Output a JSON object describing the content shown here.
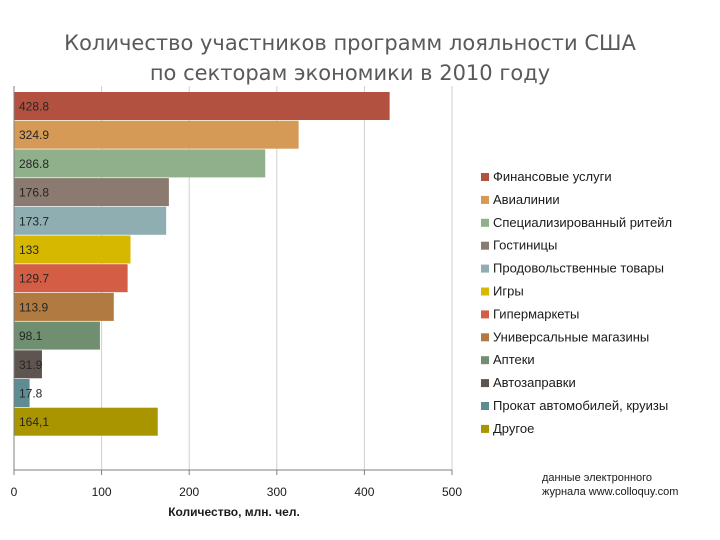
{
  "chart_data": {
    "type": "bar",
    "orientation": "horizontal",
    "title_lines": [
      "Количество участников программ лояльности США",
      "по секторам экономики в 2010 году"
    ],
    "xlabel": "Количество, млн. чел.",
    "xlim": [
      0,
      500
    ],
    "xticks": [
      "0",
      "100",
      "200",
      "300",
      "400",
      "500"
    ],
    "grid": true,
    "legend_position": "right",
    "source_lines": [
      "данные электронного",
      "журнала www.colloquy.com"
    ],
    "bars": [
      {
        "legend": "Финансовые услуги",
        "value": 428.8,
        "label": "428.8",
        "color": "#b2513f"
      },
      {
        "legend": "Авиалинии",
        "value": 324.9,
        "label": "324.9",
        "color": "#d59a55"
      },
      {
        "legend": "Специализированный ритейл",
        "value": 286.8,
        "label": "286.8",
        "color": "#8fb08a"
      },
      {
        "legend": "Гостиницы",
        "value": 176.8,
        "label": "176.8",
        "color": "#8a7a70"
      },
      {
        "legend": "Продовольственные товары",
        "value": 173.7,
        "label": "173.7",
        "color": "#8eaeb2"
      },
      {
        "legend": "Игры",
        "value": 133,
        "label": "133",
        "color": "#d6b800"
      },
      {
        "legend": "Гипермаркеты",
        "value": 129.7,
        "label": "129.7",
        "color": "#d45e45"
      },
      {
        "legend": "Универсальные магазины",
        "value": 113.9,
        "label": "113.9",
        "color": "#b07a40"
      },
      {
        "legend": "Аптеки",
        "value": 98.1,
        "label": "98.1",
        "color": "#708f70"
      },
      {
        "legend": "Автозаправки",
        "value": 31.9,
        "label": "31.9",
        "color": "#5e5550"
      },
      {
        "legend": "Прокат автомобилей, круизы",
        "value": 17.8,
        "label": "17.8",
        "color": "#5f8c92"
      },
      {
        "legend": "Другое",
        "value": 164.1,
        "label": "164,1",
        "color": "#a89500"
      }
    ]
  }
}
